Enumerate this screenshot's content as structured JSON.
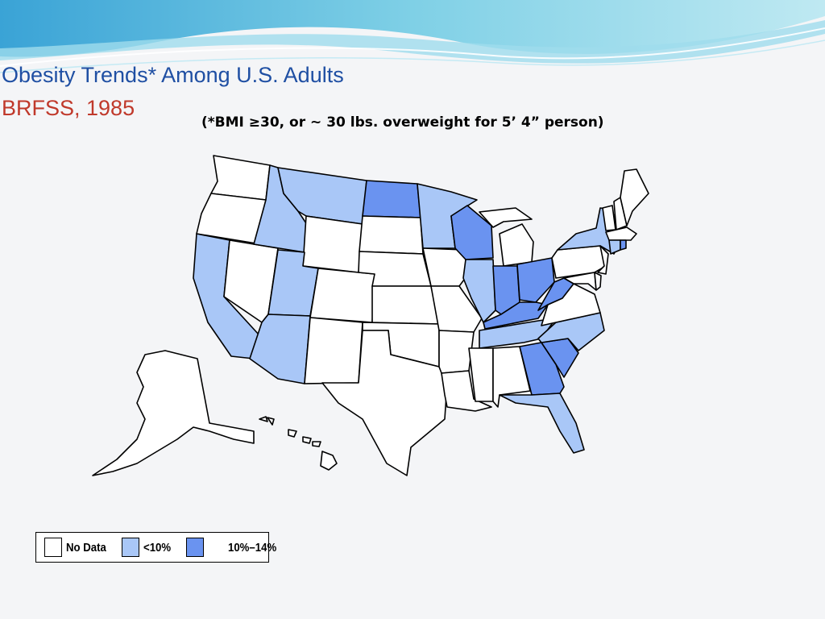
{
  "title": "Obesity Trends* Among U.S. Adults",
  "subtitle": "BRFSS, 1985",
  "note": "(*BMI ≥30, or ~ 30 lbs. overweight for 5’ 4” person)",
  "colors": {
    "no_data": "#ffffff",
    "lt10": "#a9c7f7",
    "10_14": "#6a93f0",
    "title": "#1f4fa3",
    "subtitle": "#c0392b"
  },
  "legend": [
    {
      "label": "No Data",
      "category": "no_data"
    },
    {
      "label": "<10%",
      "category": "lt10"
    },
    {
      "label": "10%–14%",
      "category": "10_14"
    }
  ],
  "states": {
    "WA": "no_data",
    "OR": "no_data",
    "CA": "lt10",
    "NV": "no_data",
    "ID": "lt10",
    "MT": "lt10",
    "WY": "no_data",
    "UT": "lt10",
    "AZ": "lt10",
    "CO": "no_data",
    "NM": "no_data",
    "ND": "10_14",
    "SD": "no_data",
    "NE": "no_data",
    "KS": "no_data",
    "OK": "no_data",
    "TX": "no_data",
    "MN": "lt10",
    "IA": "no_data",
    "MO": "no_data",
    "AR": "no_data",
    "LA": "no_data",
    "WI": "10_14",
    "IL": "lt10",
    "MI": "no_data",
    "IN": "10_14",
    "OH": "10_14",
    "KY": "10_14",
    "TN": "lt10",
    "MS": "no_data",
    "AL": "no_data",
    "GA": "10_14",
    "FL": "lt10",
    "SC": "10_14",
    "NC": "lt10",
    "VA": "no_data",
    "WV": "10_14",
    "PA": "no_data",
    "NY": "lt10",
    "VT": "no_data",
    "NH": "no_data",
    "ME": "no_data",
    "MA": "no_data",
    "CT": "lt10",
    "RI": "10_14",
    "NJ": "no_data",
    "DE": "no_data",
    "MD": "no_data",
    "AK": "no_data",
    "HI": "no_data"
  }
}
